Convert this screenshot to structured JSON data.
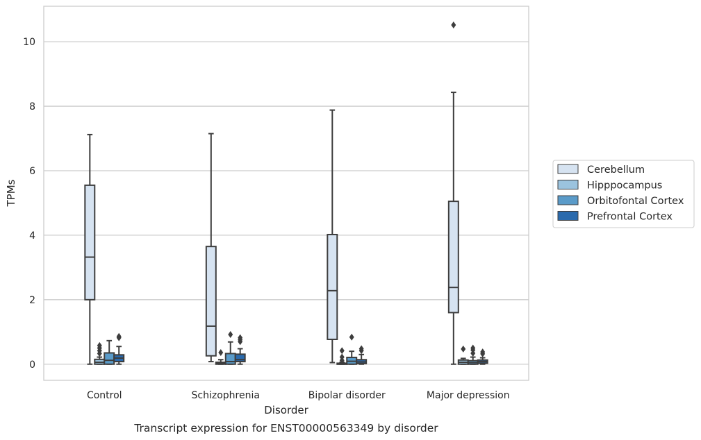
{
  "caption": "Transcript expression for ENST00000563349 by disorder",
  "chart_data": {
    "type": "box",
    "xlabel": "Disorder",
    "ylabel": "TPMs",
    "ylim": [
      -0.5,
      11.1
    ],
    "yticks": [
      0,
      2,
      4,
      6,
      8,
      10
    ],
    "grid": "horizontal",
    "legend_position": "right",
    "categories": [
      "Control",
      "Schizophrenia",
      "Bipolar disorder",
      "Major depression"
    ],
    "series": [
      {
        "name": "Cerebellum",
        "color": "#d6e3f1",
        "boxes": [
          {
            "whislo": 0.0,
            "q1": 2.0,
            "med": 3.32,
            "q3": 5.55,
            "whishi": 7.12,
            "fliers": []
          },
          {
            "whislo": 0.08,
            "q1": 0.26,
            "med": 1.18,
            "q3": 3.65,
            "whishi": 7.15,
            "fliers": []
          },
          {
            "whislo": 0.05,
            "q1": 0.77,
            "med": 2.28,
            "q3": 4.02,
            "whishi": 7.88,
            "fliers": []
          },
          {
            "whislo": 0.0,
            "q1": 1.6,
            "med": 2.38,
            "q3": 5.05,
            "whishi": 8.43,
            "fliers": [
              10.52
            ]
          }
        ]
      },
      {
        "name": "Hipppocampus",
        "color": "#9bc3de",
        "boxes": [
          {
            "whislo": 0.0,
            "q1": 0.0,
            "med": 0.06,
            "q3": 0.15,
            "whishi": 0.22,
            "fliers": [
              0.33,
              0.42,
              0.5,
              0.58
            ]
          },
          {
            "whislo": 0.0,
            "q1": 0.0,
            "med": 0.02,
            "q3": 0.06,
            "whishi": 0.14,
            "fliers": [
              0.36
            ]
          },
          {
            "whislo": 0.0,
            "q1": 0.0,
            "med": 0.01,
            "q3": 0.03,
            "whishi": 0.06,
            "fliers": [
              0.12,
              0.22,
              0.42
            ]
          },
          {
            "whislo": 0.0,
            "q1": 0.0,
            "med": 0.06,
            "q3": 0.13,
            "whishi": 0.18,
            "fliers": [
              0.47
            ]
          }
        ]
      },
      {
        "name": "Orbitofontal Cortex",
        "color": "#5a9bc9",
        "boxes": [
          {
            "whislo": 0.0,
            "q1": 0.0,
            "med": 0.12,
            "q3": 0.35,
            "whishi": 0.73,
            "fliers": []
          },
          {
            "whislo": 0.0,
            "q1": 0.0,
            "med": 0.08,
            "q3": 0.33,
            "whishi": 0.69,
            "fliers": [
              0.92
            ]
          },
          {
            "whislo": 0.0,
            "q1": 0.0,
            "med": 0.09,
            "q3": 0.21,
            "whishi": 0.4,
            "fliers": [
              0.84
            ]
          },
          {
            "whislo": 0.0,
            "q1": 0.0,
            "med": 0.05,
            "q3": 0.11,
            "whishi": 0.22,
            "fliers": [
              0.34,
              0.44,
              0.5
            ]
          }
        ]
      },
      {
        "name": "Prefrontal Cortex",
        "color": "#2a6aad",
        "boxes": [
          {
            "whislo": 0.0,
            "q1": 0.08,
            "med": 0.19,
            "q3": 0.29,
            "whishi": 0.55,
            "fliers": [
              0.82,
              0.86
            ]
          },
          {
            "whislo": 0.0,
            "q1": 0.08,
            "med": 0.14,
            "q3": 0.31,
            "whishi": 0.48,
            "fliers": [
              0.7,
              0.76,
              0.82
            ]
          },
          {
            "whislo": 0.0,
            "q1": 0.02,
            "med": 0.07,
            "q3": 0.14,
            "whishi": 0.3,
            "fliers": [
              0.42,
              0.48
            ]
          },
          {
            "whislo": 0.0,
            "q1": 0.03,
            "med": 0.08,
            "q3": 0.13,
            "whishi": 0.2,
            "fliers": [
              0.32,
              0.38
            ]
          }
        ]
      }
    ]
  }
}
